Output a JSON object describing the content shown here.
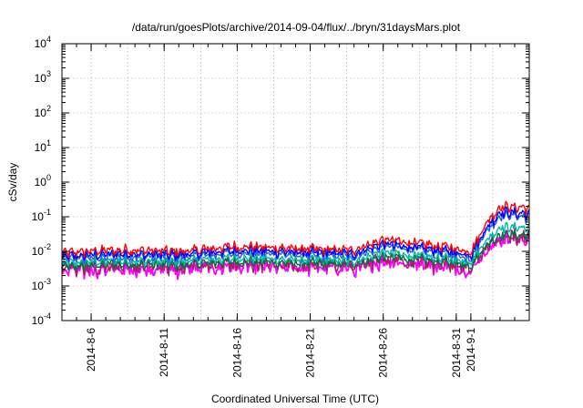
{
  "chart_data": {
    "type": "line",
    "title": "/data/run/goesPlots/archive/2014-09-04/flux/../bryn/31daysMars.plot",
    "xlabel": "Coordinated Universal Time (UTC)",
    "ylabel": "cSv/day",
    "yscale": "log",
    "ylim": [
      0.0001,
      10000
    ],
    "xlim": [
      "2014-08-04",
      "2014-09-05"
    ],
    "grid": true,
    "y_ticks": [
      {
        "base": "10",
        "exp": "4"
      },
      {
        "base": "10",
        "exp": "3"
      },
      {
        "base": "10",
        "exp": "2"
      },
      {
        "base": "10",
        "exp": "1"
      },
      {
        "base": "10",
        "exp": "0"
      },
      {
        "base": "10",
        "exp": "-1"
      },
      {
        "base": "10",
        "exp": "-2"
      },
      {
        "base": "10",
        "exp": "-3"
      },
      {
        "base": "10",
        "exp": "-4"
      }
    ],
    "x_ticks": [
      "2014-8-6",
      "2014-8-11",
      "2014-8-16",
      "2014-8-21",
      "2014-8-26",
      "2014-8-31",
      "2014-9-1"
    ],
    "x_tick_days": [
      2,
      7,
      12,
      17,
      22,
      27,
      28
    ],
    "x_minor_per_major": 5,
    "series_colors": [
      "#ff0000",
      "#0000ff",
      "#2060e0",
      "#00b8a0",
      "#007040",
      "#a02060",
      "#ff00ff"
    ],
    "series_levels_baseline": [
      0.0105,
      0.0082,
      0.0068,
      0.0052,
      0.0042,
      0.0036,
      0.003
    ],
    "series_levels_peak": [
      0.22,
      0.15,
      0.12,
      0.055,
      0.034,
      0.03,
      0.025
    ],
    "sample_points": [
      {
        "x": "2014-08-04",
        "y_top": 0.009
      },
      {
        "x": "2014-08-08",
        "y_top": 0.011
      },
      {
        "x": "2014-08-12",
        "y_top": 0.01
      },
      {
        "x": "2014-08-16",
        "y_top": 0.014
      },
      {
        "x": "2014-08-20",
        "y_top": 0.012
      },
      {
        "x": "2014-08-24",
        "y_top": 0.011
      },
      {
        "x": "2014-08-26",
        "y_top": 0.022
      },
      {
        "x": "2014-08-30",
        "y_top": 0.014
      },
      {
        "x": "2014-09-01",
        "y_top": 0.01
      },
      {
        "x": "2014-09-02",
        "y_top": 0.06
      },
      {
        "x": "2014-09-03",
        "y_top": 0.2
      },
      {
        "x": "2014-09-05",
        "y_top": 0.18
      }
    ]
  }
}
